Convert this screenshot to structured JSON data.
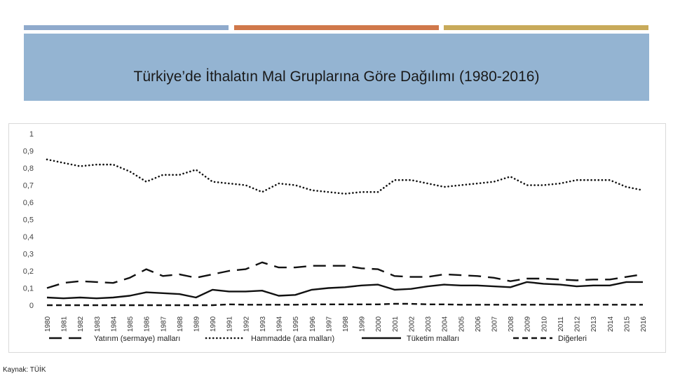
{
  "slide": {
    "title": "Türkiye’de İthalatın Mal Gruplarına Göre Dağılımı (1980-2016)",
    "source": "Kaynak: TÜİK",
    "accent_colors": [
      "#8faacc",
      "#d0784a",
      "#c8aa5a"
    ],
    "title_box_color": "#94b4d2"
  },
  "chart_data": {
    "type": "line",
    "title": "",
    "xlabel": "",
    "ylabel": "",
    "ylim": [
      0,
      1
    ],
    "yticks": [
      "0",
      "0,1",
      "0,2",
      "0,3",
      "0,4",
      "0,5",
      "0,6",
      "0,7",
      "0,8",
      "0,9",
      "1"
    ],
    "grid": false,
    "legend_position": "bottom",
    "x": [
      "1980",
      "1981",
      "1982",
      "1983",
      "1984",
      "1985",
      "1986",
      "1987",
      "1988",
      "1989",
      "1990",
      "1991",
      "1992",
      "1993",
      "1994",
      "1995",
      "1996",
      "1997",
      "1998",
      "1999",
      "2000",
      "2001",
      "2002",
      "2003",
      "2004",
      "2005",
      "2006",
      "2007",
      "2008",
      "2009",
      "2010",
      "2011",
      "2012",
      "2013",
      "2014",
      "2015",
      "2016"
    ],
    "series": [
      {
        "name": "Yatırım (sermaye) malları",
        "style": "long-dash",
        "values": [
          0.1,
          0.13,
          0.14,
          0.135,
          0.13,
          0.16,
          0.21,
          0.17,
          0.18,
          0.16,
          0.18,
          0.2,
          0.21,
          0.25,
          0.22,
          0.22,
          0.23,
          0.23,
          0.23,
          0.215,
          0.21,
          0.17,
          0.165,
          0.165,
          0.18,
          0.175,
          0.17,
          0.16,
          0.14,
          0.155,
          0.155,
          0.15,
          0.145,
          0.15,
          0.15,
          0.165,
          0.18
        ]
      },
      {
        "name": "Hammadde (ara malları)",
        "style": "dotted",
        "values": [
          0.85,
          0.83,
          0.81,
          0.82,
          0.82,
          0.78,
          0.72,
          0.76,
          0.76,
          0.79,
          0.72,
          0.71,
          0.7,
          0.66,
          0.71,
          0.7,
          0.67,
          0.66,
          0.65,
          0.66,
          0.66,
          0.73,
          0.73,
          0.71,
          0.69,
          0.7,
          0.71,
          0.72,
          0.75,
          0.7,
          0.7,
          0.71,
          0.73,
          0.73,
          0.73,
          0.69,
          0.67
        ]
      },
      {
        "name": "Tüketim malları",
        "style": "solid",
        "values": [
          0.045,
          0.04,
          0.045,
          0.04,
          0.045,
          0.055,
          0.075,
          0.07,
          0.065,
          0.045,
          0.09,
          0.08,
          0.08,
          0.085,
          0.055,
          0.06,
          0.09,
          0.1,
          0.105,
          0.115,
          0.12,
          0.09,
          0.095,
          0.11,
          0.12,
          0.115,
          0.115,
          0.11,
          0.105,
          0.135,
          0.125,
          0.12,
          0.11,
          0.115,
          0.115,
          0.135,
          0.135
        ]
      },
      {
        "name": "Diğerleri",
        "style": "dashed",
        "values": [
          0.0,
          0.0,
          0.0,
          0.0,
          0.0,
          0.0,
          0.0,
          0.0,
          0.0,
          0.0,
          0.0,
          0.005,
          0.003,
          0.003,
          0.003,
          0.003,
          0.005,
          0.005,
          0.005,
          0.005,
          0.005,
          0.008,
          0.008,
          0.005,
          0.005,
          0.003,
          0.003,
          0.003,
          0.003,
          0.003,
          0.003,
          0.003,
          0.003,
          0.003,
          0.003,
          0.003,
          0.003
        ]
      }
    ]
  }
}
